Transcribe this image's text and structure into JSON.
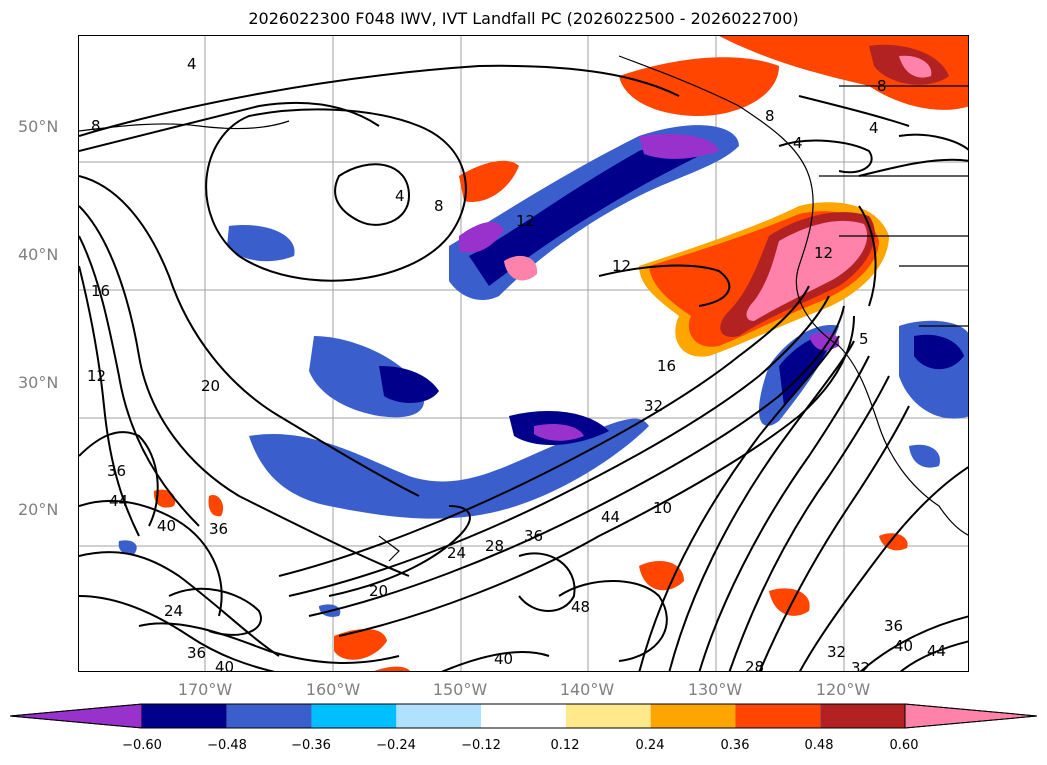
{
  "title": "2026022300 F048 IWV, IVT Landfall PC (2026022500 - 2026022700)",
  "lat_labels": [
    "50°N",
    "40°N",
    "30°N",
    "20°N"
  ],
  "lon_labels": [
    "170°W",
    "160°W",
    "150°W",
    "140°W",
    "130°W",
    "120°W"
  ],
  "colorbar": {
    "ticks": [
      "−0.60",
      "−0.48",
      "−0.36",
      "−0.24",
      "−0.12",
      "0.12",
      "0.24",
      "0.36",
      "0.48",
      "0.60"
    ],
    "colors": [
      "#9932cc",
      "#00008b",
      "#3a5fcd",
      "#00bfff",
      "#b0e2ff",
      "#ffffff",
      "#ffe98a",
      "#ffa500",
      "#ff4500",
      "#b22222",
      "#ff82ab"
    ]
  },
  "contour_labels": [
    "4",
    "8",
    "4",
    "8",
    "12",
    "12",
    "16",
    "20",
    "16",
    "12",
    "36",
    "44",
    "40",
    "36",
    "24",
    "24",
    "20",
    "28",
    "36",
    "32",
    "40",
    "44",
    "10",
    "48",
    "40",
    "36",
    "32",
    "28",
    "36",
    "40",
    "44",
    "32",
    "4",
    "8",
    "8",
    "12",
    "4",
    "5"
  ],
  "colors": {
    "positive": "#ff4500",
    "positive_dark": "#b22222",
    "positive_pink": "#ff82ab",
    "positive_orange": "#ffa500",
    "negative_purple": "#9932cc",
    "negative_blue": "#3a5fcd",
    "negative_navy": "#00008b",
    "negative_light": "#00bfff"
  }
}
